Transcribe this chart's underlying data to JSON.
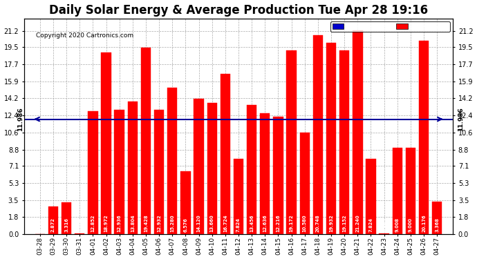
{
  "title": "Daily Solar Energy & Average Production Tue Apr 28 19:16",
  "copyright": "Copyright 2020 Cartronics.com",
  "categories": [
    "03-28",
    "03-29",
    "03-30",
    "03-31",
    "04-01",
    "04-02",
    "04-03",
    "04-04",
    "04-05",
    "04-06",
    "04-07",
    "04-08",
    "04-09",
    "04-10",
    "04-11",
    "04-12",
    "04-13",
    "04-14",
    "04-15",
    "04-16",
    "04-17",
    "04-18",
    "04-19",
    "04-20",
    "04-21",
    "04-22",
    "04-23",
    "04-24",
    "04-25",
    "04-26",
    "04-27"
  ],
  "values": [
    0.0,
    2.872,
    3.316,
    0.064,
    12.852,
    18.972,
    12.936,
    13.804,
    19.428,
    12.932,
    15.28,
    6.576,
    14.12,
    13.66,
    16.724,
    7.824,
    13.456,
    12.636,
    12.216,
    19.172,
    10.58,
    20.748,
    19.932,
    19.152,
    21.24,
    7.824,
    0.104,
    9.008,
    9.0,
    20.176,
    3.368
  ],
  "average": 11.986,
  "bar_color": "#FF0000",
  "average_line_color": "#000099",
  "yticks": [
    0.0,
    1.8,
    3.5,
    5.3,
    7.1,
    8.8,
    10.6,
    12.4,
    14.2,
    15.9,
    17.7,
    19.5,
    21.2
  ],
  "ymax": 22.5,
  "ymin": 0.0,
  "bg_color": "#FFFFFF",
  "grid_color": "#AAAAAA",
  "legend_avg_bg": "#0000CC",
  "legend_daily_bg": "#FF0000",
  "title_fontsize": 12,
  "average_text": "11.986"
}
